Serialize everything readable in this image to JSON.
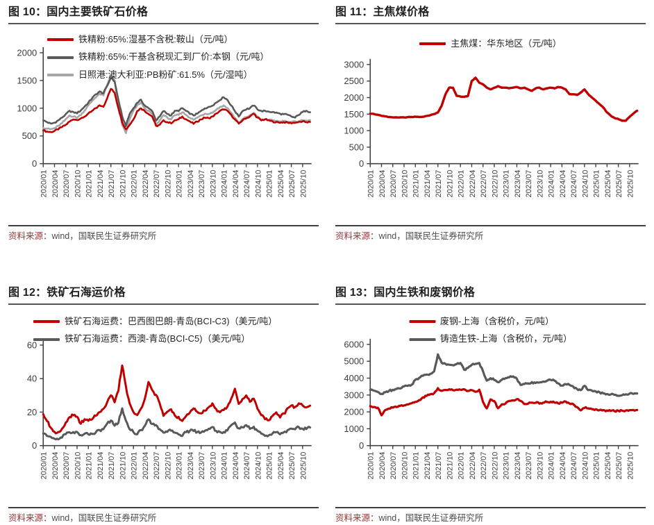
{
  "colors": {
    "red": "#c00000",
    "dark_gray": "#595959",
    "light_gray": "#a6a6a6",
    "axis": "#404040",
    "tick_text": "#3d3d3d",
    "title_text": "#1f1f1f",
    "source_label": "#953735",
    "source_text": "#4d4d4d"
  },
  "panels": [
    {
      "title": "图 10：国内主要铁矿石价格",
      "legend": [
        {
          "label": "铁精粉:65%:湿基不含税:鞍山（元/吨）",
          "color": "#c00000"
        },
        {
          "label": "铁精粉:65%:干基含税现汇到厂价:本钢（元/吨）",
          "color": "#595959"
        },
        {
          "label": "日照港:澳大利亚:PB粉矿:61.5%（元/湿吨）",
          "color": "#a6a6a6"
        }
      ],
      "source_label": "资料来源：",
      "source_text": "wind，国联民生证券研究所"
    },
    {
      "title": "图 11：主焦煤价格",
      "legend": [
        {
          "label": "主焦煤：华东地区（元/吨）",
          "color": "#c00000"
        }
      ],
      "source_label": "资料来源：",
      "source_text": "wind，国联民生证券研究所"
    },
    {
      "title": "图 12：铁矿石海运价格",
      "legend": [
        {
          "label": "铁矿石海运费：巴西图巴朗-青岛(BCI-C3)（美元/吨）",
          "color": "#c00000"
        },
        {
          "label": "铁矿石海运费：西澳-青岛(BCI-C5)（美元/吨）",
          "color": "#595959"
        }
      ],
      "source_label": "资料来源：",
      "source_text": "wind，国联民生证券研究所"
    },
    {
      "title": "图 13：国内生铁和废钢价格",
      "legend": [
        {
          "label": "废钢-上海（含税价，元/吨）",
          "color": "#c00000"
        },
        {
          "label": "铸造生铁-上海（含税价，元/吨）",
          "color": "#595959"
        }
      ],
      "source_label": "资料来源：",
      "source_text": "wind，国联民生证券研究所"
    }
  ],
  "x_labels": [
    "2020/01",
    "2020/04",
    "2020/07",
    "2020/10",
    "2021/01",
    "2021/04",
    "2021/07",
    "2021/10",
    "2022/01",
    "2022/04",
    "2022/07",
    "2022/10",
    "2023/01",
    "2023/04",
    "2023/07",
    "2023/10",
    "2024/01",
    "2024/04",
    "2024/07",
    "2024/10",
    "2025/01",
    "2025/04",
    "2025/07",
    "2025/10"
  ],
  "chart_data": [
    {
      "type": "line",
      "title": "图 10：国内主要铁矿石价格",
      "xlabel": "",
      "ylabel": "",
      "x_monthly_from": "2020/01",
      "x_tick_labels": [
        "2020/01",
        "2020/04",
        "2020/07",
        "2020/10",
        "2021/01",
        "2021/04",
        "2021/07",
        "2021/10",
        "2022/01",
        "2022/04",
        "2022/07",
        "2022/10",
        "2023/01",
        "2023/04",
        "2023/07",
        "2023/10",
        "2024/01",
        "2024/04",
        "2024/07",
        "2024/10",
        "2025/01",
        "2025/04",
        "2025/07",
        "2025/10"
      ],
      "ylim": [
        0,
        2000
      ],
      "yticks": [
        0,
        500,
        1000,
        1500,
        2000
      ],
      "legend_position": "top-left",
      "grid": false,
      "series": [
        {
          "name": "铁精粉:65%:湿基不含税:鞍山（元/吨）",
          "color": "#c00000",
          "values": [
            600,
            580,
            570,
            590,
            620,
            660,
            700,
            760,
            800,
            790,
            810,
            850,
            900,
            950,
            1000,
            1050,
            1030,
            1180,
            1350,
            1280,
            1000,
            750,
            620,
            700,
            800,
            950,
            1000,
            950,
            900,
            850,
            680,
            700,
            780,
            750,
            730,
            780,
            800,
            850,
            800,
            760,
            720,
            760,
            800,
            830,
            820,
            850,
            900,
            950,
            980,
            950,
            880,
            800,
            720,
            780,
            820,
            850,
            900,
            830,
            780,
            800,
            780,
            760,
            750,
            740,
            750,
            740,
            730,
            740,
            750,
            760,
            750,
            750
          ]
        },
        {
          "name": "铁精粉:65%:干基含税现汇到厂价:本钢（元/吨）",
          "color": "#595959",
          "values": [
            780,
            750,
            720,
            740,
            780,
            830,
            890,
            950,
            930,
            910,
            960,
            1030,
            1100,
            1180,
            1250,
            1300,
            1270,
            1400,
            1550,
            1480,
            1150,
            850,
            680,
            900,
            1000,
            1100,
            1150,
            1050,
            1000,
            950,
            780,
            850,
            950,
            900,
            870,
            950,
            950,
            1000,
            950,
            900,
            870,
            900,
            950,
            1000,
            1020,
            1050,
            1100,
            1150,
            1200,
            1150,
            1050,
            950,
            850,
            950,
            980,
            1000,
            1050,
            980,
            950,
            950,
            940,
            930,
            920,
            900,
            890,
            880,
            850,
            830,
            880,
            930,
            960,
            930
          ]
        },
        {
          "name": "日照港:澳大利亚:PB粉矿:61.5%（元/湿吨）",
          "color": "#a6a6a6",
          "values": [
            650,
            630,
            620,
            640,
            680,
            730,
            800,
            870,
            850,
            830,
            880,
            960,
            1050,
            1130,
            1200,
            1260,
            1230,
            1420,
            1600,
            1500,
            1050,
            700,
            550,
            800,
            950,
            1050,
            1100,
            1000,
            950,
            900,
            700,
            780,
            880,
            830,
            800,
            870,
            880,
            930,
            880,
            830,
            790,
            830,
            870,
            900,
            900,
            920,
            970,
            1020,
            1050,
            1000,
            920,
            830,
            720,
            800,
            840,
            870,
            920,
            850,
            790,
            800,
            790,
            780,
            770,
            760,
            770,
            760,
            750,
            760,
            770,
            780,
            780,
            780
          ]
        }
      ]
    },
    {
      "type": "line",
      "title": "图 11：主焦煤价格",
      "xlabel": "",
      "ylabel": "",
      "x_monthly_from": "2020/01",
      "x_tick_labels": [
        "2020/01",
        "2020/04",
        "2020/07",
        "2020/10",
        "2021/01",
        "2021/04",
        "2021/07",
        "2021/10",
        "2022/01",
        "2022/04",
        "2022/07",
        "2022/10",
        "2023/01",
        "2023/04",
        "2023/07",
        "2023/10",
        "2024/01",
        "2024/04",
        "2024/07",
        "2024/10",
        "2025/01",
        "2025/04",
        "2025/07",
        "2025/10"
      ],
      "ylim": [
        0,
        3000
      ],
      "yticks": [
        0,
        500,
        1000,
        1500,
        2000,
        2500,
        3000
      ],
      "legend_position": "top-center",
      "grid": false,
      "series": [
        {
          "name": "主焦煤：华东地区（元/吨）",
          "color": "#c00000",
          "values": [
            1510,
            1500,
            1480,
            1450,
            1430,
            1410,
            1400,
            1400,
            1400,
            1400,
            1410,
            1410,
            1420,
            1410,
            1420,
            1440,
            1470,
            1500,
            1550,
            1750,
            2100,
            2300,
            2300,
            2050,
            2030,
            2020,
            2050,
            2500,
            2600,
            2450,
            2400,
            2300,
            2250,
            2300,
            2350,
            2300,
            2300,
            2280,
            2300,
            2320,
            2280,
            2300,
            2250,
            2200,
            2280,
            2300,
            2250,
            2280,
            2300,
            2280,
            2320,
            2300,
            2250,
            2100,
            2100,
            2080,
            2150,
            2250,
            2100,
            2000,
            1900,
            1800,
            1700,
            1550,
            1450,
            1380,
            1350,
            1300,
            1300,
            1420,
            1520,
            1600
          ]
        }
      ]
    },
    {
      "type": "line",
      "title": "图 12：铁矿石海运价格",
      "xlabel": "",
      "ylabel": "",
      "x_monthly_from": "2020/01",
      "x_tick_labels": [
        "2020/01",
        "2020/04",
        "2020/07",
        "2020/10",
        "2021/01",
        "2021/04",
        "2021/07",
        "2021/10",
        "2022/01",
        "2022/04",
        "2022/07",
        "2022/10",
        "2023/01",
        "2023/04",
        "2023/07",
        "2023/10",
        "2024/01",
        "2024/04",
        "2024/07",
        "2024/10",
        "2025/01",
        "2025/04",
        "2025/07",
        "2025/10"
      ],
      "ylim": [
        0,
        60
      ],
      "yticks": [
        0,
        20,
        40,
        60
      ],
      "legend_position": "top-left",
      "grid": false,
      "series": [
        {
          "name": "铁矿石海运费：巴西图巴朗-青岛(BCI-C3)（美元/吨）",
          "color": "#c00000",
          "values": [
            19,
            15,
            11,
            8,
            8,
            10,
            14,
            17,
            18,
            17,
            13,
            16,
            15,
            16,
            18,
            20,
            22,
            26,
            30,
            26,
            33,
            48,
            35,
            25,
            20,
            18,
            22,
            28,
            38,
            33,
            30,
            25,
            18,
            20,
            22,
            18,
            17,
            15,
            18,
            20,
            22,
            20,
            19,
            21,
            23,
            25,
            22,
            20,
            21,
            23,
            28,
            34,
            25,
            28,
            30,
            26,
            28,
            22,
            18,
            16,
            15,
            18,
            20,
            17,
            19,
            22,
            24,
            23,
            25,
            24,
            23,
            24
          ]
        },
        {
          "name": "铁矿石海运费：西澳-青岛(BCI-C5)（美元/吨）",
          "color": "#595959",
          "values": [
            7,
            6,
            5,
            4,
            4,
            5,
            7,
            8,
            8,
            8,
            6,
            7,
            7,
            7,
            8,
            9,
            10,
            13,
            15,
            12,
            14,
            22,
            15,
            10,
            8,
            7,
            9,
            12,
            16,
            13,
            12,
            10,
            8,
            8,
            9,
            8,
            7,
            6,
            8,
            9,
            9,
            8,
            8,
            9,
            10,
            11,
            9,
            8,
            8,
            9,
            12,
            14,
            10,
            11,
            12,
            10,
            11,
            9,
            7,
            6,
            6,
            7,
            8,
            7,
            8,
            9,
            10,
            10,
            11,
            10,
            10,
            11
          ]
        }
      ]
    },
    {
      "type": "line",
      "title": "图 13：国内生铁和废钢价格",
      "xlabel": "",
      "ylabel": "",
      "x_monthly_from": "2020/01",
      "x_tick_labels": [
        "2020/01",
        "2020/04",
        "2020/07",
        "2020/10",
        "2021/01",
        "2021/04",
        "2021/07",
        "2021/10",
        "2022/01",
        "2022/04",
        "2022/07",
        "2022/10",
        "2023/01",
        "2023/04",
        "2023/07",
        "2023/10",
        "2024/01",
        "2024/04",
        "2024/07",
        "2024/10",
        "2025/01",
        "2025/04",
        "2025/07",
        "2025/10"
      ],
      "ylim": [
        0,
        6000
      ],
      "yticks": [
        0,
        1000,
        2000,
        3000,
        4000,
        5000,
        6000
      ],
      "legend_position": "top-center",
      "grid": false,
      "series": [
        {
          "name": "废钢-上海（含税价，元/吨）",
          "color": "#c00000",
          "values": [
            2350,
            2300,
            2250,
            1800,
            2100,
            2200,
            2250,
            2300,
            2350,
            2400,
            2450,
            2500,
            2600,
            2700,
            2850,
            2950,
            3050,
            3100,
            3400,
            3250,
            3300,
            3350,
            3300,
            3300,
            3300,
            3350,
            3250,
            3300,
            3200,
            3300,
            2600,
            2200,
            2750,
            2650,
            2200,
            2450,
            2500,
            2650,
            2700,
            2750,
            2650,
            2450,
            2500,
            2550,
            2550,
            2500,
            2550,
            2600,
            2600,
            2550,
            2500,
            2550,
            2600,
            2500,
            2450,
            2300,
            2100,
            2250,
            2200,
            2150,
            2150,
            2100,
            2100,
            2080,
            2060,
            2050,
            2060,
            2070,
            2080,
            2100,
            2100,
            2100
          ]
        },
        {
          "name": "铸造生铁-上海（含税价，元/吨）",
          "color": "#595959",
          "values": [
            3300,
            3250,
            3200,
            3050,
            3150,
            3250,
            3300,
            3350,
            3400,
            3500,
            3550,
            3600,
            3900,
            4000,
            4150,
            4200,
            4250,
            4400,
            5400,
            4900,
            4850,
            4800,
            4750,
            4850,
            4900,
            4500,
            4600,
            4800,
            4850,
            4900,
            4400,
            3850,
            4000,
            3900,
            3750,
            3900,
            4000,
            4050,
            4100,
            3950,
            3600,
            3650,
            3700,
            3750,
            3700,
            3750,
            3800,
            3850,
            3900,
            3850,
            3700,
            3550,
            3650,
            3600,
            3500,
            3350,
            3300,
            3550,
            3300,
            3250,
            3200,
            3150,
            3100,
            3050,
            3050,
            3000,
            2950,
            3000,
            3050,
            3080,
            3080,
            3080
          ]
        }
      ]
    }
  ]
}
